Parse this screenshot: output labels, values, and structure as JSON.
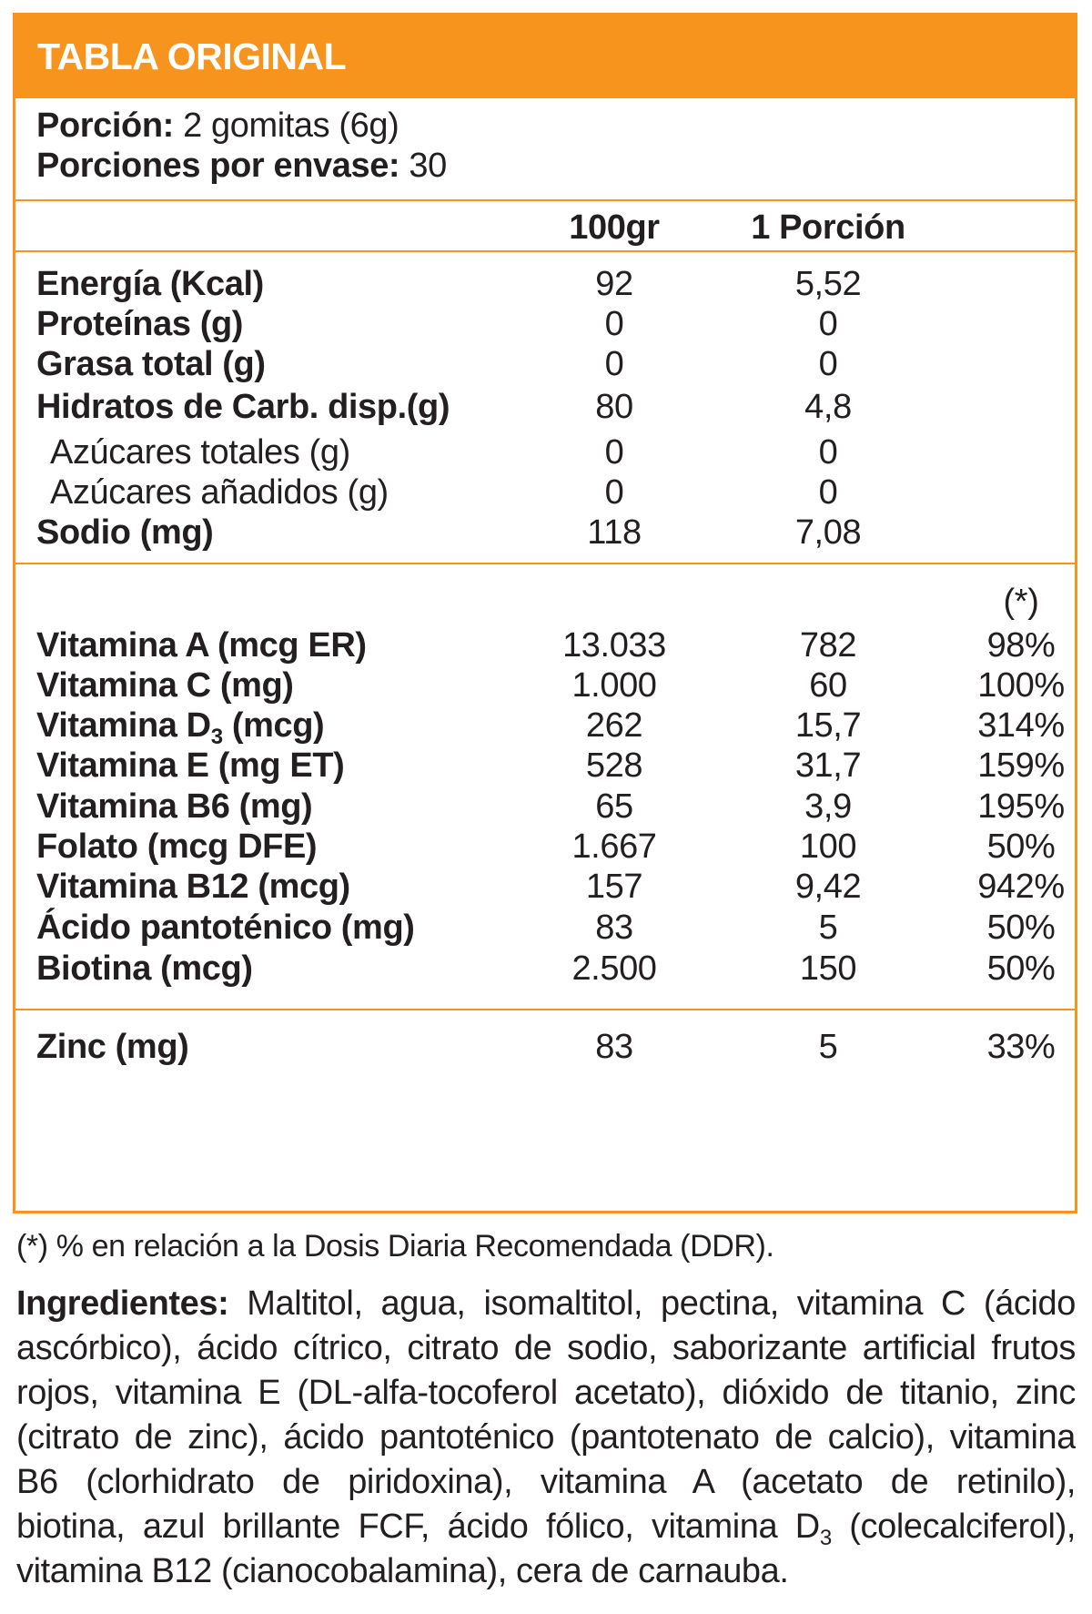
{
  "header": {
    "title": "TABLA ORIGINAL"
  },
  "serving": {
    "portion_label": "Porción:",
    "portion_value": "2 gomitas (6g)",
    "per_pack_label": "Porciones por envase:",
    "per_pack_value": "30"
  },
  "columns": {
    "per100": "100gr",
    "per_portion": "1 Porción",
    "dri_note": "(*)"
  },
  "macros": [
    {
      "label": "Energía (Kcal)",
      "per100": "92",
      "portion": "5,52",
      "bold": true
    },
    {
      "label": "Proteínas (g)",
      "per100": "0",
      "portion": "0",
      "bold": true
    },
    {
      "label": "Grasa total (g)",
      "per100": "0",
      "portion": "0",
      "bold": true
    },
    {
      "label": "Hidratos de Carb. disp.(g)",
      "per100": "80",
      "portion": "4,8",
      "bold": true
    },
    {
      "label": "Azúcares totales (g)",
      "per100": "0",
      "portion": "0",
      "bold": false
    },
    {
      "label": "Azúcares añadidos (g)",
      "per100": "0",
      "portion": "0",
      "bold": false
    },
    {
      "label": "Sodio (mg)",
      "per100": "118",
      "portion": "7,08",
      "bold": true
    }
  ],
  "vitamins": [
    {
      "label": "Vitamina A (mcg ER)",
      "per100": "13.033",
      "portion": "782",
      "dri": "98%"
    },
    {
      "label": "Vitamina C (mg)",
      "per100": "1.000",
      "portion": "60",
      "dri": "100%"
    },
    {
      "label_pre": "Vitamina D",
      "label_sub": "3",
      "label_post": " (mcg)",
      "per100": "262",
      "portion": "15,7",
      "dri": "314%"
    },
    {
      "label": "Vitamina E (mg ET)",
      "per100": "528",
      "portion": "31,7",
      "dri": "159%"
    },
    {
      "label": "Vitamina B6 (mg)",
      "per100": "65",
      "portion": "3,9",
      "dri": "195%"
    },
    {
      "label": "Folato (mcg DFE)",
      "per100": "1.667",
      "portion": "100",
      "dri": "50%"
    },
    {
      "label": "Vitamina B12 (mcg)",
      "per100": "157",
      "portion": "9,42",
      "dri": "942%"
    },
    {
      "label": "Ácido pantoténico (mg)",
      "per100": "83",
      "portion": "5",
      "dri": "50%"
    },
    {
      "label": "Biotina (mcg)",
      "per100": "2.500",
      "portion": "150",
      "dri": "50%"
    }
  ],
  "minerals": [
    {
      "label": "Zinc (mg)",
      "per100": "83",
      "portion": "5",
      "dri": "33%"
    }
  ],
  "footnote": "(*) % en relación a la Dosis Diaria Recomendada (DDR).",
  "ingredients": {
    "label": "Ingredientes:",
    "lines": [
      " Maltitol, agua, isomaltitol, pectina, vitamina C (ácido",
      "ascórbico), ácido cítrico, citrato de sodio, saborizante artificial frutos",
      "rojos, vitamina E (DL-alfa-tocoferol acetato), dióxido de titanio, zinc",
      "(citrato de zinc), ácido pantoténico (pantotenato de calcio), vitamina",
      "B6 (clorhidrato de piridoxina), vitamina A (acetato de retinilo),"
    ],
    "line6_pre": "biotina, azul brillante FCF, ácido fólico, vitamina D",
    "line6_sub": "3",
    "line6_post": " (colecalciferol),",
    "line7": "vitamina B12 (cianocobalamina), cera de carnauba."
  },
  "colors": {
    "accent": "#f7941d",
    "text": "#231f20",
    "header_text": "#ffffff"
  }
}
